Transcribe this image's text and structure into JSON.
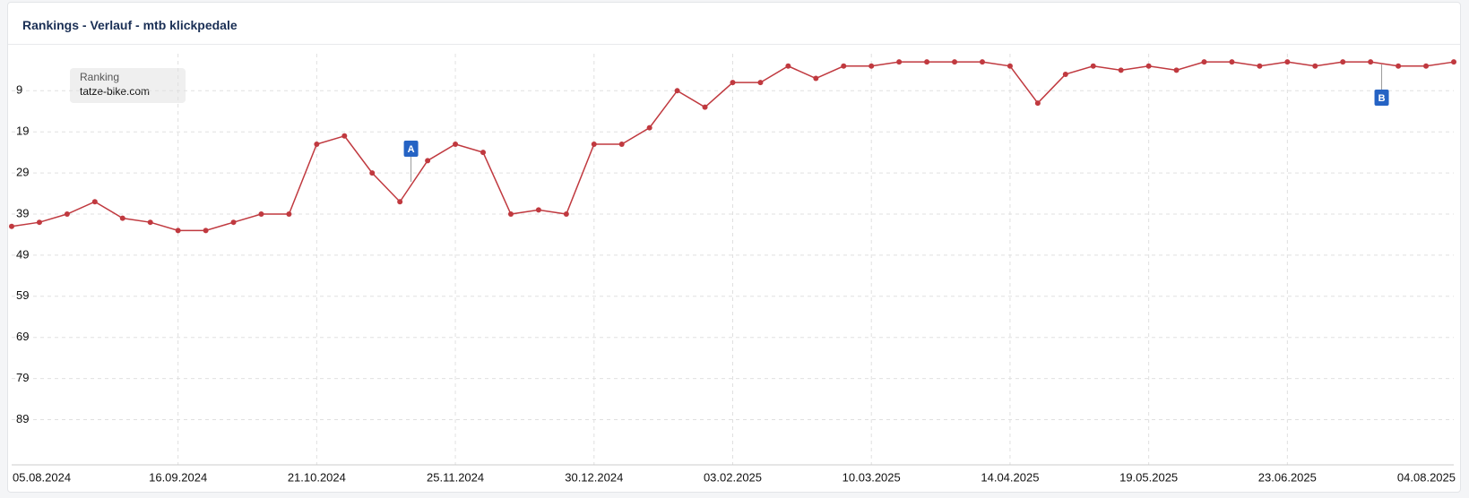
{
  "chart_data": {
    "type": "line",
    "title": "Rankings - Verlauf - mtb klickpedale",
    "legend_title": "Ranking",
    "categories": [
      "05.08.2024",
      null,
      null,
      null,
      null,
      null,
      "16.09.2024",
      null,
      null,
      null,
      null,
      "21.10.2024",
      null,
      null,
      null,
      null,
      "25.11.2024",
      null,
      null,
      null,
      null,
      "30.12.2024",
      null,
      null,
      null,
      null,
      "03.02.2025",
      null,
      null,
      null,
      null,
      "10.03.2025",
      null,
      null,
      null,
      null,
      "14.04.2025",
      null,
      null,
      null,
      null,
      "19.05.2025",
      null,
      null,
      null,
      null,
      "23.06.2025",
      null,
      null,
      null,
      null,
      null,
      "04.08.2025"
    ],
    "series": [
      {
        "name": "tatze-bike.com",
        "color": "#c0393f",
        "values": [
          42,
          41,
          39,
          36,
          40,
          41,
          43,
          43,
          41,
          39,
          39,
          22,
          20,
          29,
          36,
          26,
          22,
          24,
          39,
          38,
          39,
          22,
          22,
          18,
          9,
          13,
          7,
          7,
          3,
          6,
          3,
          3,
          2,
          2,
          2,
          2,
          3,
          12,
          5,
          3,
          4,
          3,
          4,
          2,
          2,
          3,
          2,
          3,
          2,
          2,
          3,
          3,
          2
        ]
      }
    ],
    "ylim": [
      100,
      0
    ],
    "yticks": [
      9,
      19,
      29,
      39,
      49,
      59,
      69,
      79,
      89
    ],
    "grid": true,
    "annotations": [
      "A",
      "B"
    ]
  }
}
